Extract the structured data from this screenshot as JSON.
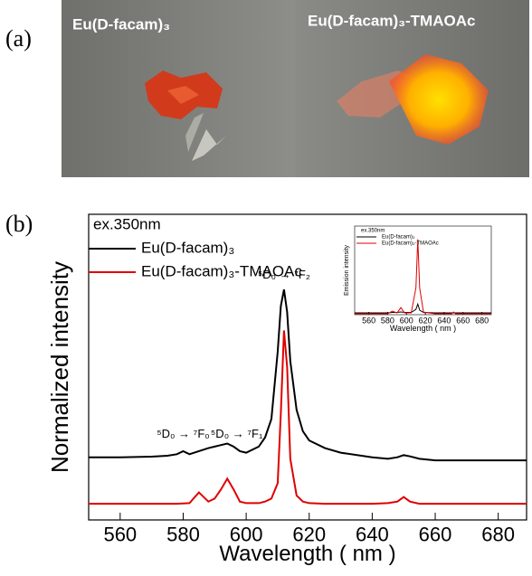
{
  "panel_a": {
    "label": "(a)",
    "captions": [
      "Eu(D-facam)₃",
      "Eu(D-facam)₃-TMAOAc"
    ]
  },
  "panel_b": {
    "label": "(b)"
  },
  "chart_data": [
    {
      "type": "line",
      "xlabel": "Wavelength ( nm )",
      "ylabel": "Normalized intensity",
      "note": "ex.350nm",
      "xlim": [
        550,
        689
      ],
      "xticks": [
        560,
        580,
        600,
        620,
        640,
        660,
        680
      ],
      "ylim": [
        0,
        1
      ],
      "annotations": [
        "⁵D₀ → ⁷F₀",
        "⁵D₀ → ⁷F₁",
        "⁵D₀ → ⁷F₂"
      ],
      "x": [
        550,
        560,
        570,
        575,
        578,
        580,
        582,
        585,
        588,
        590,
        592,
        594,
        596,
        598,
        600,
        604,
        606,
        608,
        610,
        611,
        612,
        613,
        614,
        616,
        618,
        620,
        625,
        630,
        640,
        645,
        648,
        650,
        652,
        655,
        660,
        670,
        680,
        689
      ],
      "series": [
        {
          "name": "Eu(D-facam)₃",
          "color": "#000000",
          "values": [
            0.205,
            0.205,
            0.207,
            0.21,
            0.215,
            0.225,
            0.215,
            0.225,
            0.235,
            0.24,
            0.245,
            0.25,
            0.24,
            0.225,
            0.22,
            0.24,
            0.27,
            0.33,
            0.55,
            0.7,
            0.754,
            0.68,
            0.52,
            0.36,
            0.29,
            0.26,
            0.235,
            0.22,
            0.205,
            0.2,
            0.205,
            0.212,
            0.208,
            0.2,
            0.195,
            0.195,
            0.195,
            0.195
          ]
        },
        {
          "name": "Eu(D-facam)₃-TMAOAc",
          "color": "#e00000",
          "values": [
            0.053,
            0.053,
            0.053,
            0.053,
            0.053,
            0.054,
            0.055,
            0.09,
            0.06,
            0.07,
            0.1,
            0.135,
            0.1,
            0.06,
            0.055,
            0.055,
            0.06,
            0.07,
            0.12,
            0.35,
            0.62,
            0.5,
            0.2,
            0.08,
            0.06,
            0.055,
            0.053,
            0.053,
            0.053,
            0.055,
            0.06,
            0.075,
            0.06,
            0.053,
            0.053,
            0.053,
            0.053,
            0.053
          ]
        }
      ]
    },
    {
      "type": "line",
      "xlabel": "Wavelength ( nm )",
      "ylabel": "Emission intensity",
      "note": "ex.350nm",
      "xlim": [
        545,
        690
      ],
      "xticks": [
        560,
        580,
        600,
        620,
        640,
        660,
        680
      ],
      "ylim": [
        0,
        1
      ],
      "x": [
        545,
        560,
        580,
        585,
        590,
        594,
        598,
        605,
        610,
        612,
        614,
        618,
        630,
        648,
        650,
        652,
        670,
        690
      ],
      "series": [
        {
          "name": "Eu(D-facam)₃",
          "color": "#000000",
          "values": [
            0.02,
            0.02,
            0.02,
            0.025,
            0.025,
            0.03,
            0.025,
            0.025,
            0.06,
            0.12,
            0.05,
            0.025,
            0.02,
            0.02,
            0.022,
            0.02,
            0.02,
            0.02
          ]
        },
        {
          "name": "Eu(D-facam)₃-TMAOAc",
          "color": "#e00000",
          "values": [
            0.01,
            0.01,
            0.01,
            0.04,
            0.02,
            0.08,
            0.02,
            0.02,
            0.3,
            0.85,
            0.3,
            0.03,
            0.01,
            0.01,
            0.03,
            0.01,
            0.01,
            0.01
          ]
        }
      ]
    }
  ]
}
